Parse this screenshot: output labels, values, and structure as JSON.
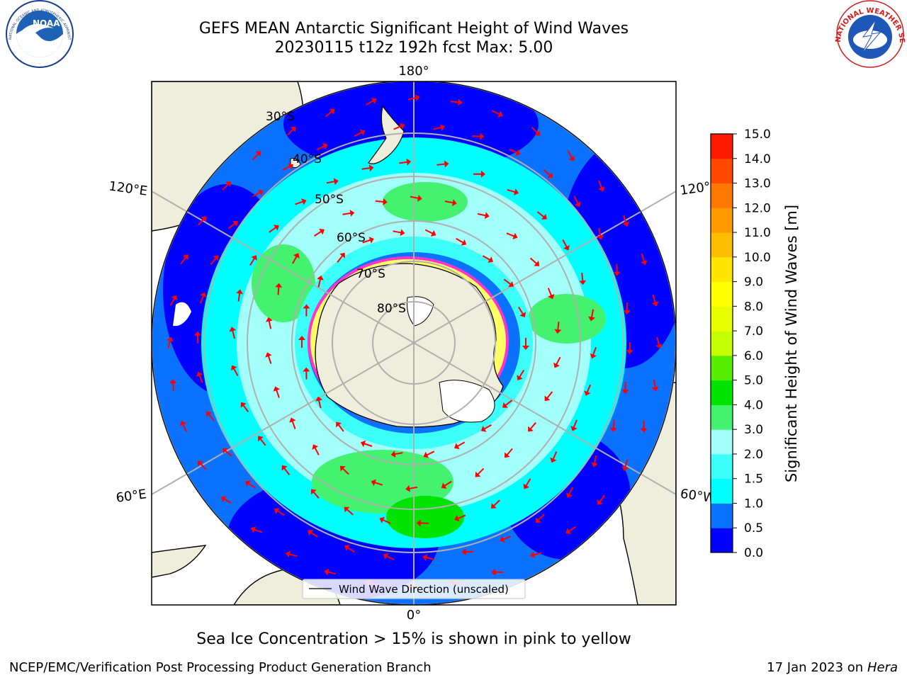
{
  "header": {
    "title_line1": "GEFS MEAN Antarctic Significant Height of Wind Waves",
    "title_line2": "20230115 t12z 192h fcst   Max: 5.00"
  },
  "logos": {
    "left": {
      "text": "NOAA",
      "ring_text": "NATIONAL OCEANIC AND ATMOSPHERIC ADMINISTRATION · U.S. DEPARTMENT OF COMMERCE"
    },
    "right": {
      "ring_text": "NATIONAL WEATHER SERVICE"
    }
  },
  "map": {
    "meridian_labels": {
      "top": "180°",
      "bottom": "0°",
      "left_upper": "120°E",
      "right_upper": "120°",
      "left_lower": "60°E",
      "right_lower": "60°W"
    },
    "latitude_labels": [
      "30°S",
      "40°S",
      "50°S",
      "60°S",
      "70°S",
      "80°S"
    ],
    "legend_label": "Wind Wave Direction (unscaled)",
    "colors": {
      "land": "#efeedd",
      "ice": "#ffffff",
      "ice_edge": "#ff33cc",
      "grid": "#b0b0b0",
      "arrow": "#ff0000"
    }
  },
  "colorbar": {
    "label": "Significant Height of Wind Waves [m]",
    "ticks": [
      "0.0",
      "0.5",
      "1.0",
      "1.5",
      "2.0",
      "3.0",
      "4.0",
      "5.0",
      "6.0",
      "7.0",
      "8.0",
      "9.0",
      "10.0",
      "11.0",
      "12.0",
      "13.0",
      "14.0",
      "15.0"
    ],
    "colors": [
      "#0000ff",
      "#0a72ff",
      "#00ffff",
      "#3cfffa",
      "#a2fff9",
      "#44f26f",
      "#00e200",
      "#55ee00",
      "#c4ff00",
      "#e8ff00",
      "#ffff00",
      "#ffe600",
      "#ffbe00",
      "#ff9900",
      "#ff7800",
      "#ff4a00",
      "#ff1a00"
    ]
  },
  "notes": {
    "sea_ice": "Sea Ice Concentration > 15% is shown in pink to yellow",
    "credit_left": "NCEP/EMC/Verification Post Processing Product Generation Branch",
    "credit_right_prefix": "17 Jan 2023 on ",
    "credit_right_machine": "Hera"
  }
}
